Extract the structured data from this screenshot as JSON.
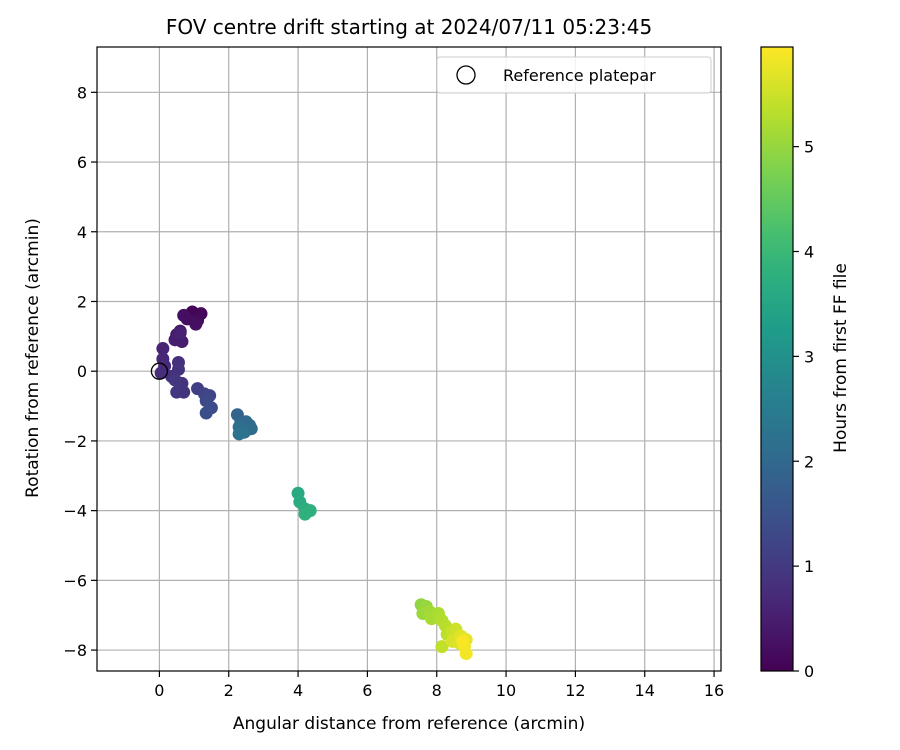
{
  "chart_data": {
    "type": "scatter",
    "title": "FOV centre drift starting at 2024/07/11 05:23:45",
    "xlabel": "Angular distance from reference (arcmin)",
    "ylabel": "Rotation from reference (arcmin)",
    "xlim": [
      -1.8,
      16.2
    ],
    "ylim": [
      -8.6,
      9.3
    ],
    "xticks": [
      0,
      2,
      4,
      6,
      8,
      10,
      12,
      14,
      16
    ],
    "yticks": [
      -8,
      -6,
      -4,
      -2,
      0,
      2,
      4,
      6,
      8
    ],
    "grid": true,
    "legend": {
      "placement": "top-right",
      "entries": [
        "Reference platepar"
      ]
    },
    "reference_point": {
      "name": "Reference platepar",
      "x": 0,
      "y": 0
    },
    "colorbar": {
      "label": "Hours from first FF file",
      "range": [
        0,
        5.95
      ],
      "ticks": [
        0,
        1,
        2,
        3,
        4,
        5
      ],
      "colormap": "viridis"
    },
    "series": [
      {
        "columns": [
          "x",
          "y",
          "hours"
        ],
        "points": [
          [
            0.95,
            1.7,
            0.05
          ],
          [
            1.2,
            1.65,
            0.1
          ],
          [
            1.1,
            1.45,
            0.15
          ],
          [
            0.8,
            1.5,
            0.2
          ],
          [
            0.7,
            1.6,
            0.22
          ],
          [
            1.05,
            1.35,
            0.25
          ],
          [
            0.6,
            1.15,
            0.35
          ],
          [
            0.5,
            1.05,
            0.4
          ],
          [
            0.65,
            0.85,
            0.45
          ],
          [
            0.45,
            0.9,
            0.5
          ],
          [
            0.6,
            1.1,
            0.55
          ],
          [
            0.1,
            0.65,
            0.6
          ],
          [
            0.1,
            0.35,
            0.65
          ],
          [
            0.15,
            0.15,
            0.7
          ],
          [
            0.05,
            -0.05,
            0.75
          ],
          [
            0.35,
            -0.15,
            0.8
          ],
          [
            0.55,
            0.25,
            0.82
          ],
          [
            0.55,
            0.05,
            0.85
          ],
          [
            0.65,
            -0.35,
            0.88
          ],
          [
            0.7,
            -0.6,
            0.9
          ],
          [
            0.5,
            -0.6,
            0.92
          ],
          [
            0.45,
            -0.25,
            0.95
          ],
          [
            1.1,
            -0.5,
            1.1
          ],
          [
            1.3,
            -0.65,
            1.2
          ],
          [
            1.45,
            -0.7,
            1.25
          ],
          [
            1.35,
            -0.85,
            1.3
          ],
          [
            1.5,
            -1.05,
            1.35
          ],
          [
            1.35,
            -1.2,
            1.4
          ],
          [
            2.25,
            -1.25,
            1.9
          ],
          [
            2.35,
            -1.45,
            1.95
          ],
          [
            2.5,
            -1.45,
            2.0
          ],
          [
            2.6,
            -1.55,
            2.05
          ],
          [
            2.65,
            -1.65,
            2.1
          ],
          [
            2.3,
            -1.6,
            2.15
          ],
          [
            2.45,
            -1.75,
            2.2
          ],
          [
            2.3,
            -1.8,
            2.25
          ],
          [
            4.0,
            -3.5,
            3.6
          ],
          [
            4.05,
            -3.75,
            3.65
          ],
          [
            4.2,
            -3.95,
            3.7
          ],
          [
            4.35,
            -4.0,
            3.75
          ],
          [
            4.2,
            -4.1,
            3.8
          ],
          [
            7.55,
            -6.7,
            4.95
          ],
          [
            7.7,
            -6.75,
            5.0
          ],
          [
            7.6,
            -6.95,
            5.05
          ],
          [
            7.8,
            -6.9,
            5.1
          ],
          [
            7.85,
            -7.1,
            5.15
          ],
          [
            8.05,
            -6.95,
            5.2
          ],
          [
            8.15,
            -7.15,
            5.25
          ],
          [
            8.25,
            -7.3,
            5.3
          ],
          [
            8.3,
            -7.55,
            5.35
          ],
          [
            8.15,
            -7.9,
            5.4
          ],
          [
            8.45,
            -7.45,
            5.45
          ],
          [
            8.55,
            -7.4,
            5.5
          ],
          [
            8.6,
            -7.6,
            5.55
          ],
          [
            8.45,
            -7.75,
            5.6
          ],
          [
            8.65,
            -7.8,
            5.65
          ],
          [
            8.7,
            -7.6,
            5.7
          ],
          [
            8.85,
            -7.7,
            5.75
          ],
          [
            8.8,
            -7.9,
            5.8
          ],
          [
            8.85,
            -8.1,
            5.85
          ],
          [
            8.75,
            -7.75,
            5.9
          ]
        ]
      }
    ]
  }
}
